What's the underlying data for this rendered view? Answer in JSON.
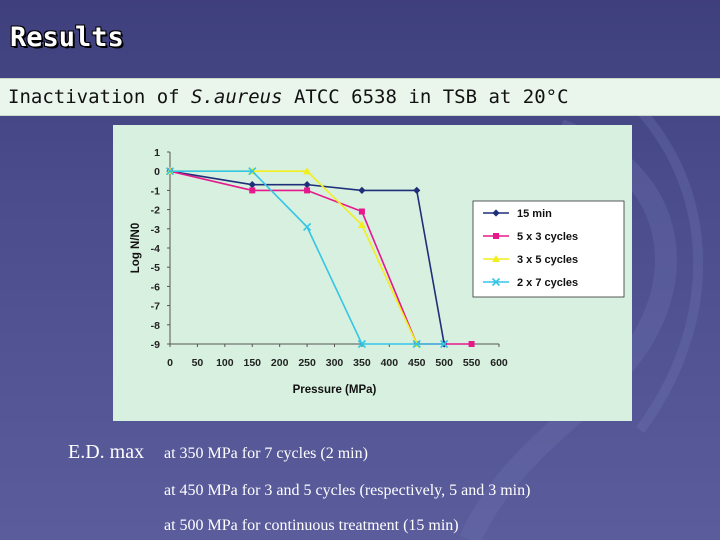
{
  "slide": {
    "title": "Results",
    "subtitle_prefix": "Inactivation of ",
    "subtitle_organism": "S.aureus",
    "subtitle_suffix": " ATCC 6538 in TSB at 20°C"
  },
  "notes": {
    "label": "E.D. max",
    "line1": "at 350 MPa for 7 cycles (2 min)",
    "line2": "at 450 MPa for 3 and 5 cycles (respectively, 5 and 3 min)",
    "line3": "at 500 MPa for continuous treatment (15 min)"
  },
  "chart_data": {
    "type": "line",
    "xlabel": "Pressure (MPa)",
    "ylabel": "Log N/N0",
    "xlim": [
      0,
      600
    ],
    "ylim": [
      -9,
      1
    ],
    "xticks": [
      0,
      50,
      100,
      150,
      200,
      250,
      300,
      350,
      400,
      450,
      500,
      550,
      600
    ],
    "yticks": [
      1,
      0,
      -1,
      -2,
      -3,
      -4,
      -5,
      -6,
      -7,
      -8,
      -9
    ],
    "grid": false,
    "legend_position": "right",
    "series": [
      {
        "name": "15 min",
        "color": "#1f2f7a",
        "marker": "diamond",
        "x": [
          0,
          150,
          250,
          350,
          450,
          500
        ],
        "y": [
          0,
          -0.7,
          -0.7,
          -1,
          -1,
          -9
        ]
      },
      {
        "name": "5 x 3 cycles",
        "color": "#e6198c",
        "marker": "square",
        "x": [
          0,
          150,
          250,
          350,
          450,
          550
        ],
        "y": [
          0,
          -1,
          -1,
          -2.1,
          -9,
          -9
        ]
      },
      {
        "name": "3 x 5 cycles",
        "color": "#f2ee1f",
        "marker": "triangle",
        "x": [
          0,
          150,
          250,
          350,
          450
        ],
        "y": [
          0,
          0,
          0,
          -2.8,
          -9
        ]
      },
      {
        "name": "2 x 7 cycles",
        "color": "#33c6e6",
        "marker": "x",
        "x": [
          0,
          150,
          250,
          350,
          450,
          500
        ],
        "y": [
          0,
          0,
          -2.9,
          -9,
          -9,
          -9
        ]
      }
    ]
  }
}
